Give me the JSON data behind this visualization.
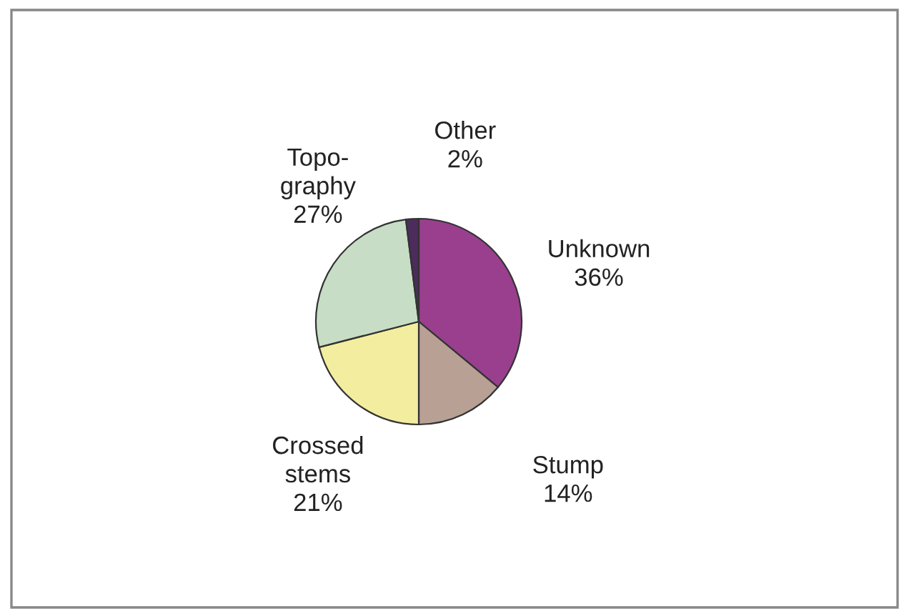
{
  "chart_data": {
    "type": "pie",
    "categories": [
      "Unknown",
      "Stump",
      "Crossed\nstems",
      "Topo-\ngraphy",
      "Other"
    ],
    "values": [
      36,
      14,
      21,
      27,
      2
    ],
    "value_labels": [
      "36%",
      "14%",
      "21%",
      "27%",
      "2%"
    ],
    "colors": [
      "#9a3f8e",
      "#b8a095",
      "#f3eda0",
      "#c8ddc6",
      "#4d2b5c"
    ]
  }
}
